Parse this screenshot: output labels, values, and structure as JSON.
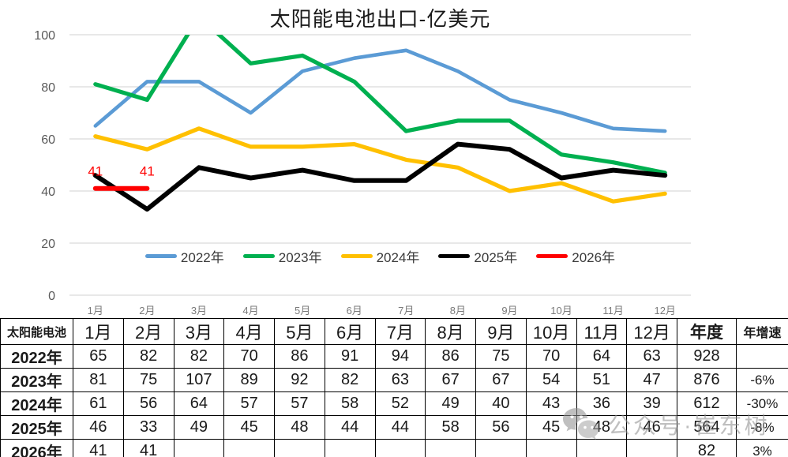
{
  "chart_data": {
    "type": "line",
    "title": "太阳能电池出口-亿美元",
    "title_color": "#FF0000",
    "categories": [
      "1月",
      "2月",
      "3月",
      "4月",
      "5月",
      "6月",
      "7月",
      "8月",
      "9月",
      "10月",
      "11月",
      "12月"
    ],
    "series": [
      {
        "name": "2022年",
        "color": "#5B9BD5",
        "values": [
          65,
          82,
          82,
          70,
          86,
          91,
          94,
          86,
          75,
          70,
          64,
          63
        ]
      },
      {
        "name": "2023年",
        "color": "#00B050",
        "values": [
          81,
          75,
          107,
          89,
          92,
          82,
          63,
          67,
          67,
          54,
          51,
          47
        ]
      },
      {
        "name": "2024年",
        "color": "#FFC000",
        "values": [
          61,
          56,
          64,
          57,
          57,
          58,
          52,
          49,
          40,
          43,
          36,
          39
        ]
      },
      {
        "name": "2025年",
        "color": "#000000",
        "values": [
          46,
          33,
          49,
          45,
          48,
          44,
          44,
          58,
          56,
          45,
          48,
          46
        ]
      },
      {
        "name": "2026年",
        "color": "#FF0000",
        "values": [
          41,
          41
        ],
        "point_labels": [
          "41",
          "41"
        ]
      }
    ],
    "ylim": [
      0,
      100
    ],
    "y_ticks": [
      0,
      20,
      40,
      60,
      80,
      100
    ],
    "grid": true,
    "values_clipped_at_max": true,
    "legend_position": "bottom-inside"
  },
  "table": {
    "corner_label": "太阳能电池",
    "month_headers": [
      "1月",
      "2月",
      "3月",
      "4月",
      "5月",
      "6月",
      "7月",
      "8月",
      "9月",
      "10月",
      "11月",
      "12月"
    ],
    "annual_header": "年度",
    "growth_header": "年增速",
    "rows": [
      {
        "label": "2022年",
        "cells": [
          "65",
          "82",
          "82",
          "70",
          "86",
          "91",
          "94",
          "86",
          "75",
          "70",
          "64",
          "63"
        ],
        "annual": "928",
        "growth": ""
      },
      {
        "label": "2023年",
        "cells": [
          "81",
          "75",
          "107",
          "89",
          "92",
          "82",
          "63",
          "67",
          "67",
          "54",
          "51",
          "47"
        ],
        "annual": "876",
        "growth": "-6%"
      },
      {
        "label": "2024年",
        "cells": [
          "61",
          "56",
          "64",
          "57",
          "57",
          "58",
          "52",
          "49",
          "40",
          "43",
          "36",
          "39"
        ],
        "annual": "612",
        "growth": "-30%"
      },
      {
        "label": "2025年",
        "cells": [
          "46",
          "33",
          "49",
          "45",
          "48",
          "44",
          "44",
          "58",
          "56",
          "45",
          "48",
          "46"
        ],
        "annual": "564",
        "growth": "-8%"
      },
      {
        "label": "2026年",
        "cells": [
          "41",
          "41",
          "",
          "",
          "",
          "",
          "",
          "",
          "",
          "",
          "",
          ""
        ],
        "annual": "82",
        "growth": "3%"
      }
    ]
  },
  "watermark": {
    "icon": "wechat-icon",
    "text": "公众号·崔东树"
  },
  "colors": {
    "grid": "#D9D9D9",
    "y_tick_label": "#595959",
    "x_tick_label": "#7A7A7A",
    "watermark": "#8C8C8C"
  }
}
